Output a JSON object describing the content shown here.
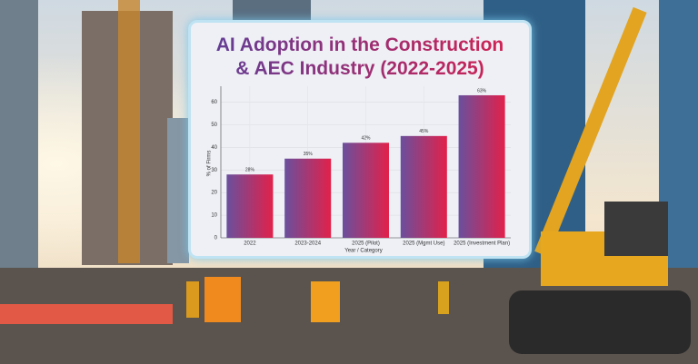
{
  "chart_data": {
    "type": "bar",
    "title": "AI Adoption in the Construction & AEC Industry (2022-2025)",
    "categories": [
      "2022",
      "2023-2024",
      "2025 (Pilot)",
      "2025 (Mgmt Use)",
      "2025 (Investment Plan)"
    ],
    "values": [
      28,
      35,
      42,
      45,
      63
    ],
    "value_labels": [
      "28%",
      "35%",
      "42%",
      "45%",
      "63%"
    ],
    "colors": [
      "#6a4f9c",
      "#e2214a"
    ],
    "x_label": "Year / Category",
    "y_label": "% of Firms",
    "ylim": [
      0,
      67
    ],
    "yticks": [
      0,
      10,
      20,
      30,
      40,
      50,
      60
    ],
    "grid": true
  }
}
